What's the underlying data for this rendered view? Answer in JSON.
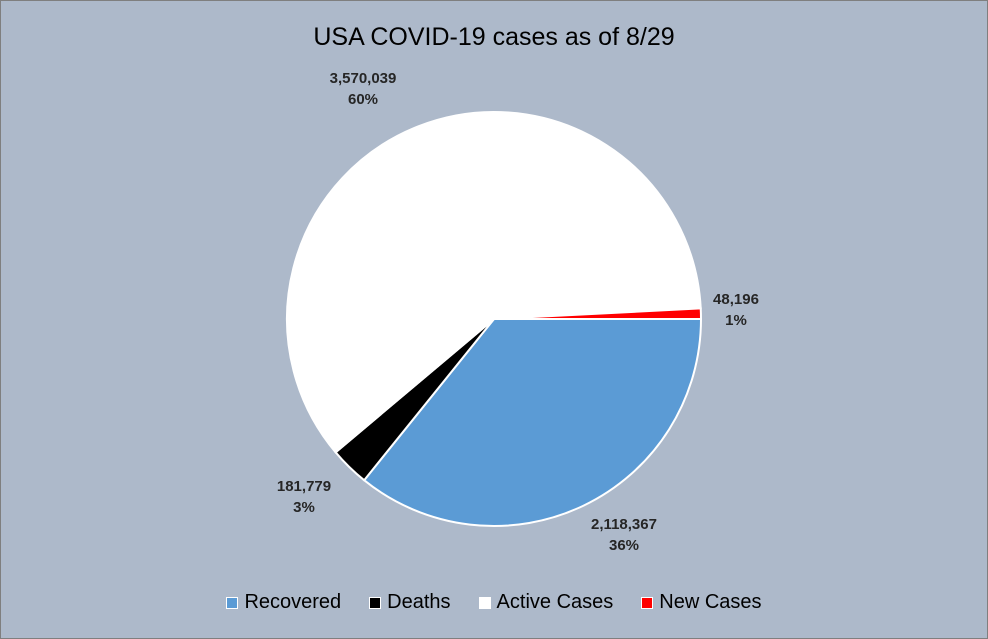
{
  "chart_data": {
    "type": "pie",
    "title": "USA COVID-19 cases as of 8/29",
    "slices": [
      {
        "name": "Recovered",
        "value": 2118367,
        "value_label": "2,118,367",
        "percent_label": "36%",
        "color": "#5b9bd5"
      },
      {
        "name": "Deaths",
        "value": 181779,
        "value_label": "181,779",
        "percent_label": "3%",
        "color": "#000000"
      },
      {
        "name": "Active Cases",
        "value": 3570039,
        "value_label": "3,570,039",
        "percent_label": "60%",
        "color": "#ffffff"
      },
      {
        "name": "New Cases",
        "value": 48196,
        "value_label": "48,196",
        "percent_label": "1%",
        "color": "#ff0000"
      }
    ],
    "legend_position": "bottom",
    "background_color": "#adb9ca"
  }
}
